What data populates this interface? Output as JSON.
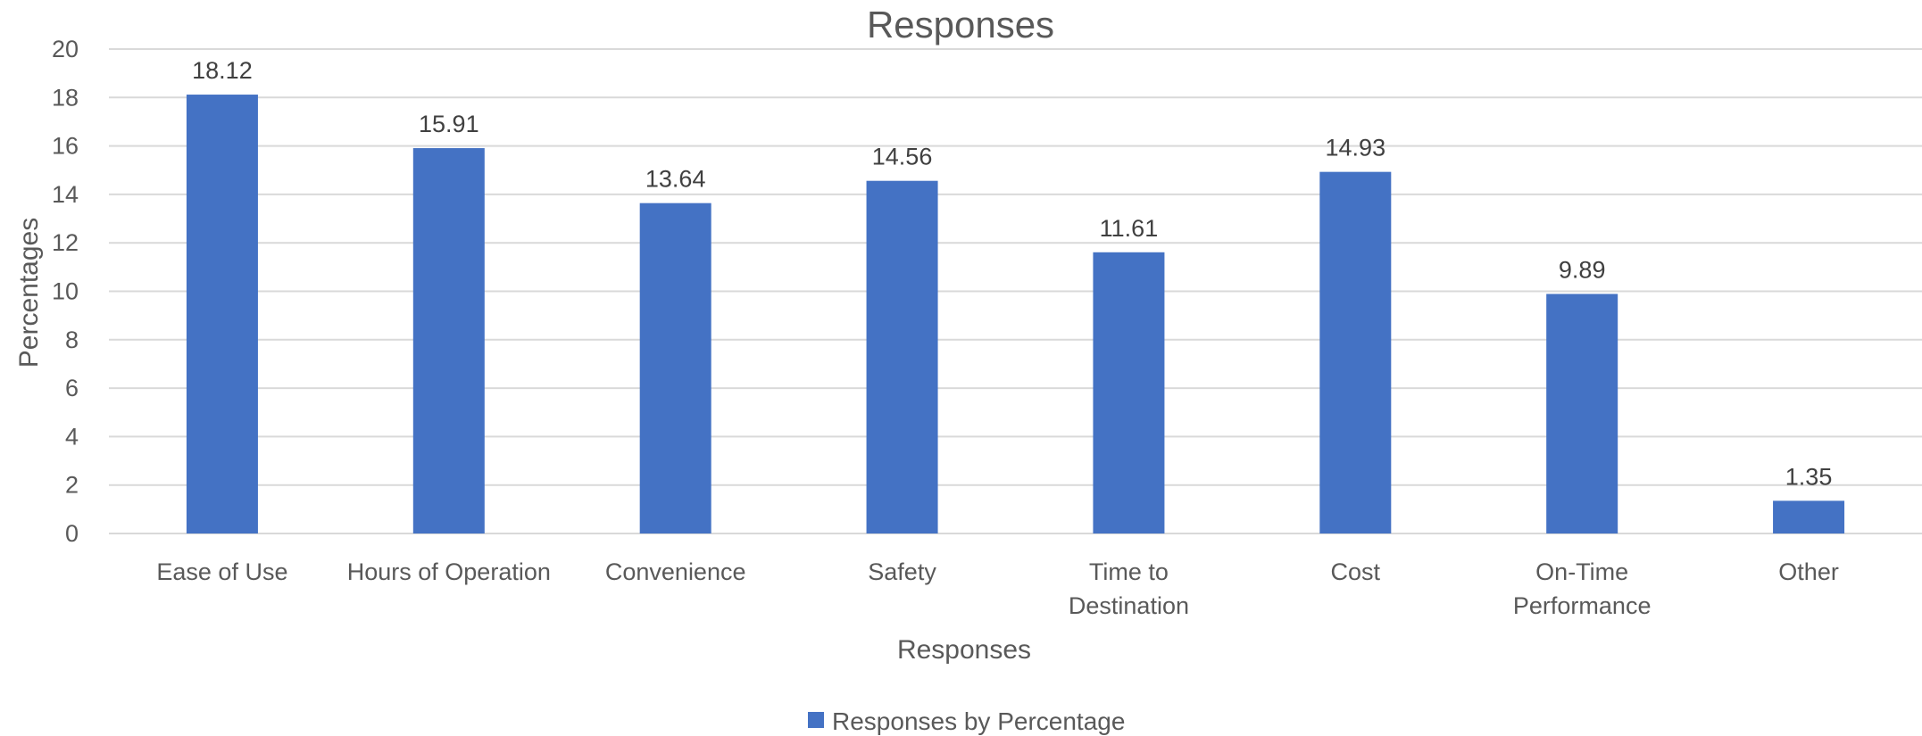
{
  "chart_data": {
    "type": "bar",
    "title": "Responses",
    "xlabel": "Responses",
    "ylabel": "Percentages",
    "categories": [
      [
        "Ease of Use"
      ],
      [
        "Hours of Operation"
      ],
      [
        "Convenience"
      ],
      [
        "Safety"
      ],
      [
        "Time to",
        "Destination"
      ],
      [
        "Cost"
      ],
      [
        "On-Time",
        "Performance"
      ],
      [
        "Other"
      ]
    ],
    "series": [
      {
        "name": "Responses by Percentage",
        "color": "#4472C4",
        "values": [
          18.12,
          15.91,
          13.64,
          14.56,
          11.61,
          14.93,
          9.89,
          1.35
        ],
        "labels": [
          "18.12",
          "15.91",
          "13.64",
          "14.56",
          "11.61",
          "14.93",
          "9.89",
          "1.35"
        ]
      }
    ],
    "ylim": [
      0,
      20
    ],
    "yticks": [
      0,
      2,
      4,
      6,
      8,
      10,
      12,
      14,
      16,
      18,
      20
    ],
    "grid": true,
    "legend": "bottom"
  }
}
